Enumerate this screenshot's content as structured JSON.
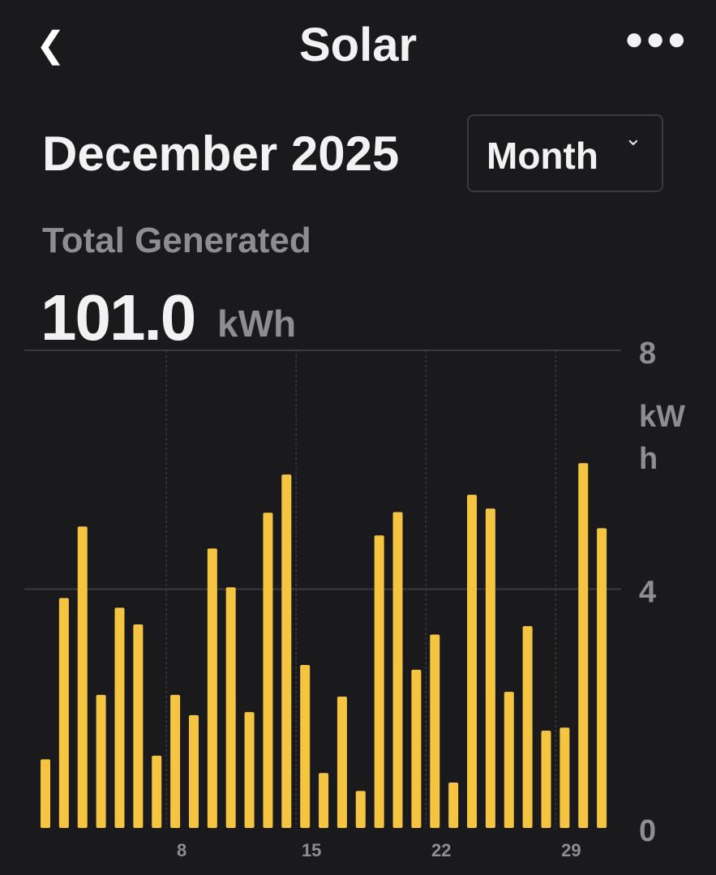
{
  "header": {
    "title": "Solar",
    "back_icon": "chevron-left-icon",
    "more_icon": "ellipsis-icon"
  },
  "period": {
    "label": "December 2025",
    "selector": "Month",
    "selector_icon": "chevron-down-icon"
  },
  "summary": {
    "label": "Total Generated",
    "value": "101.0",
    "unit": "kWh"
  },
  "chart_data": {
    "type": "bar",
    "x": [
      1,
      2,
      3,
      4,
      5,
      6,
      7,
      8,
      9,
      10,
      11,
      12,
      13,
      14,
      15,
      16,
      17,
      18,
      19,
      20,
      21,
      22,
      23,
      24,
      25,
      26,
      27,
      28,
      29,
      30,
      31
    ],
    "values": [
      1.15,
      3.85,
      5.05,
      2.23,
      3.69,
      3.41,
      1.21,
      2.23,
      1.89,
      4.68,
      4.03,
      1.94,
      5.28,
      5.92,
      2.73,
      0.92,
      2.2,
      0.62,
      4.9,
      5.29,
      2.65,
      3.24,
      0.76,
      5.58,
      5.35,
      2.28,
      3.38,
      1.63,
      1.68,
      6.11,
      5.02
    ],
    "x_ticks": [
      "8",
      "15",
      "22",
      "29"
    ],
    "y_ticks": [
      "0",
      "4",
      "8"
    ],
    "ylabel": "kWh",
    "ylim": [
      0,
      8
    ],
    "grid": true,
    "bar_color": "#f5c542"
  }
}
